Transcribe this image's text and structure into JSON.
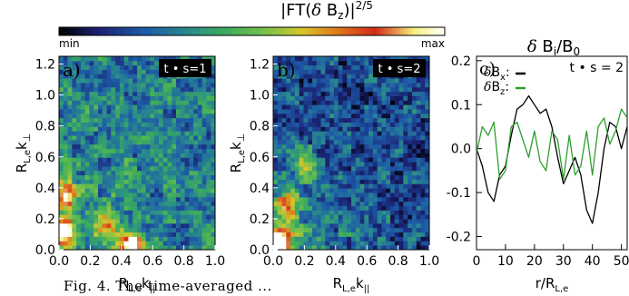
{
  "colorbar": {
    "title": "|FT(δ B_z)|^2/5",
    "min_label": "min",
    "max_label": "max",
    "colors": [
      "#000000",
      "#1a1f6e",
      "#1d5aa8",
      "#2a8c8a",
      "#3fae5a",
      "#7cc24a",
      "#d8c52a",
      "#e07a1c",
      "#d22a1a",
      "#f6f07a",
      "#ffffff"
    ]
  },
  "chart_data": [
    {
      "type": "heatmap",
      "panel_label": "a)",
      "annotation": "t • s=1",
      "xlabel": "R_L,e k_||",
      "ylabel": "R_L,e k_⊥",
      "xlim": [
        0,
        1.0
      ],
      "ylim": [
        0,
        1.25
      ],
      "xticks": [
        "0.0",
        "0.2",
        "0.4",
        "0.6",
        "0.8",
        "1.0"
      ],
      "yticks": [
        "0.0",
        "0.2",
        "0.4",
        "0.6",
        "0.8",
        "1.0",
        "1.2"
      ],
      "hotspots": [
        {
          "x": 0.03,
          "y": 0.12,
          "intensity": 1.0
        },
        {
          "x": 0.47,
          "y": 0.02,
          "intensity": 1.0
        },
        {
          "x": 0.05,
          "y": 0.35,
          "intensity": 0.65
        },
        {
          "x": 0.3,
          "y": 0.15,
          "intensity": 0.55
        }
      ]
    },
    {
      "type": "heatmap",
      "panel_label": "b)",
      "annotation": "t • s=2",
      "xlabel": "R_L,e k_||",
      "ylabel": "R_L,e k_⊥",
      "xlim": [
        0,
        1.0
      ],
      "ylim": [
        0,
        1.25
      ],
      "xticks": [
        "0.0",
        "0.2",
        "0.4",
        "0.6",
        "0.8",
        "1.0"
      ],
      "yticks": [
        "0.0",
        "0.2",
        "0.4",
        "0.6",
        "0.8",
        "1.0",
        "1.2"
      ],
      "hotspots": [
        {
          "x": 0.04,
          "y": 0.06,
          "intensity": 1.0
        },
        {
          "x": 0.1,
          "y": 0.3,
          "intensity": 0.6
        },
        {
          "x": 0.2,
          "y": 0.55,
          "intensity": 0.45
        }
      ]
    },
    {
      "type": "line",
      "panel_label": "c)",
      "title": "δ B_i/B_0",
      "annotation": "t • s = 2",
      "xlabel": "r/R_L,e",
      "xlim": [
        0,
        52
      ],
      "ylim": [
        -0.23,
        0.21
      ],
      "xticks": [
        0,
        10,
        20,
        30,
        40,
        50
      ],
      "yticks": [
        "-0.2",
        "-0.1",
        "0.0",
        "0.1",
        "0.2"
      ],
      "x": [
        0,
        2,
        4,
        6,
        8,
        10,
        12,
        14,
        16,
        18,
        20,
        22,
        24,
        26,
        28,
        30,
        32,
        34,
        36,
        38,
        40,
        42,
        44,
        46,
        48,
        50,
        52
      ],
      "series": [
        {
          "name": "δB_x",
          "color": "#000000",
          "values": [
            0.0,
            -0.04,
            -0.1,
            -0.12,
            -0.06,
            -0.04,
            0.03,
            0.09,
            0.1,
            0.12,
            0.1,
            0.08,
            0.09,
            0.05,
            -0.02,
            -0.08,
            -0.05,
            -0.02,
            -0.06,
            -0.14,
            -0.17,
            -0.1,
            0.0,
            0.06,
            0.05,
            0.0,
            0.05
          ]
        },
        {
          "name": "δB_z",
          "color": "#2e9e2e",
          "values": [
            -0.01,
            0.05,
            0.03,
            0.06,
            -0.07,
            -0.05,
            0.05,
            0.06,
            0.02,
            -0.02,
            0.04,
            -0.03,
            -0.05,
            0.04,
            0.02,
            -0.07,
            0.03,
            -0.06,
            -0.04,
            0.04,
            -0.06,
            0.05,
            0.07,
            0.01,
            0.04,
            0.09,
            0.07
          ]
        }
      ]
    }
  ],
  "caption": "Fig. 4.   The time-averaged ..."
}
